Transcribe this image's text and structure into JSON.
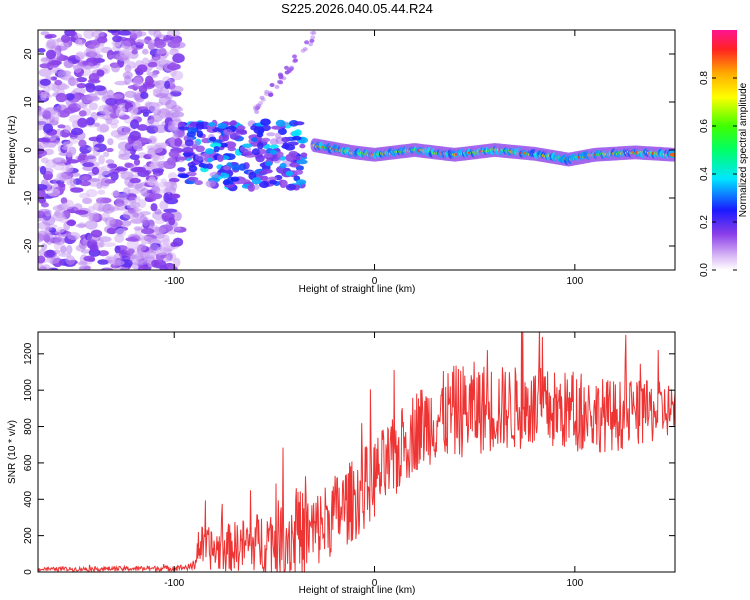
{
  "title": "S225.2026.040.05.44.R24",
  "chart_data": [
    {
      "type": "heatmap",
      "name": "spectrogram",
      "xlabel": "Height of straight line (km)",
      "ylabel": "Frequency (Hz)",
      "xlim": [
        -168,
        150
      ],
      "ylim": [
        -25,
        25
      ],
      "xticks": [
        -100,
        0,
        100
      ],
      "xtick_labels": [
        "-100",
        "0",
        "100"
      ],
      "yticks": [
        -20,
        -10,
        0,
        10,
        20
      ],
      "ytick_labels": [
        "-20",
        "-10",
        "0",
        "10",
        "20"
      ],
      "colorbar": {
        "label": "Normalized spectral amplitude",
        "range": [
          0,
          1
        ],
        "ticks": [
          0.0,
          0.2,
          0.4,
          0.6,
          0.8
        ],
        "tick_labels": [
          "0.0",
          "0.2",
          "0.4",
          "0.6",
          "0.8"
        ]
      },
      "regions": [
        {
          "desc": "broadband noise",
          "x": [
            -168,
            -97
          ],
          "f": [
            -25,
            25
          ],
          "amp": 0.2
        },
        {
          "desc": "scattered signal",
          "x": [
            -97,
            -35
          ],
          "f": [
            -8,
            6
          ],
          "amp": 0.3
        },
        {
          "desc": "ridge",
          "x": [
            -30,
            150
          ],
          "f_center": 0,
          "amp": 0.85
        }
      ],
      "ridge_trace": [
        {
          "x": -30,
          "f": 1
        },
        {
          "x": -10,
          "f": -0.5
        },
        {
          "x": 0,
          "f": -1
        },
        {
          "x": 20,
          "f": 0
        },
        {
          "x": 40,
          "f": -1
        },
        {
          "x": 60,
          "f": 0
        },
        {
          "x": 80,
          "f": -0.8
        },
        {
          "x": 97,
          "f": -2
        },
        {
          "x": 110,
          "f": -1
        },
        {
          "x": 130,
          "f": -0.5
        },
        {
          "x": 150,
          "f": -1
        }
      ]
    },
    {
      "type": "line",
      "name": "snr",
      "xlabel": "Height of straight line (km)",
      "ylabel": "SNR (10 * v/v)",
      "xlim": [
        -168,
        150
      ],
      "ylim": [
        0,
        1320
      ],
      "xticks": [
        -100,
        0,
        100
      ],
      "xtick_labels": [
        "-100",
        "0",
        "100"
      ],
      "yticks": [
        0,
        200,
        400,
        600,
        800,
        1000,
        1200
      ],
      "ytick_labels": [
        "0",
        "200",
        "400",
        "600",
        "800",
        "1000",
        "1200"
      ],
      "color": "#ee3333",
      "envelope": {
        "x": [
          -168,
          -100,
          -90,
          -88,
          -80,
          -60,
          -50,
          -40,
          -30,
          -20,
          -10,
          0,
          10,
          20,
          30,
          40,
          50,
          60,
          80,
          100,
          120,
          140,
          150
        ],
        "mean": [
          15,
          20,
          30,
          150,
          120,
          160,
          180,
          200,
          220,
          320,
          400,
          520,
          620,
          780,
          840,
          880,
          900,
          900,
          900,
          880,
          860,
          880,
          900
        ],
        "spread": [
          10,
          15,
          20,
          110,
          120,
          160,
          200,
          260,
          220,
          220,
          230,
          230,
          230,
          230,
          240,
          260,
          260,
          240,
          230,
          220,
          200,
          170,
          150
        ]
      }
    }
  ]
}
